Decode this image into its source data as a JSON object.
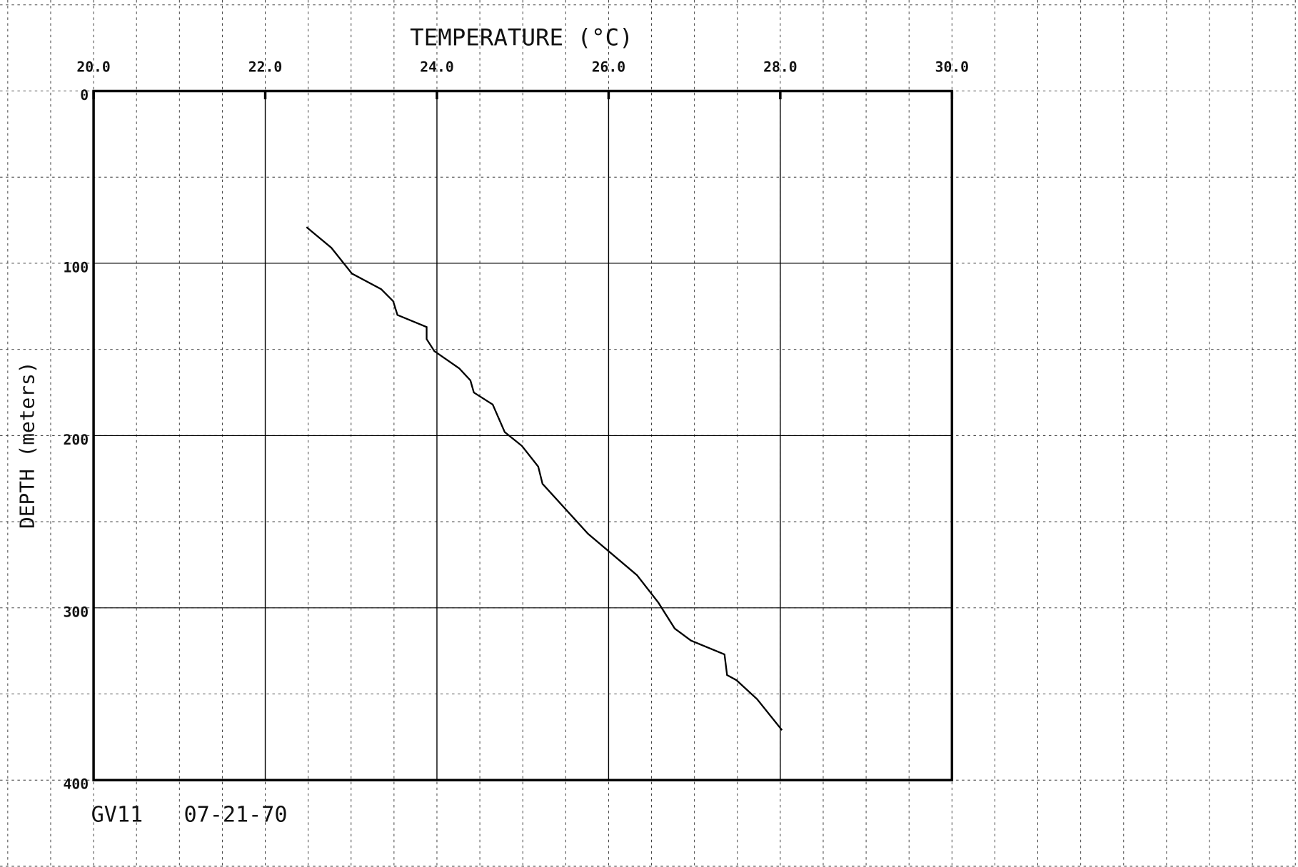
{
  "chart_data": {
    "type": "line",
    "title": "TEMPERATURE (°C)",
    "y_label": "DEPTH (meters)",
    "annotations": [
      "GV11",
      "07-21-70"
    ],
    "x": [
      22.48,
      22.77,
      23.01,
      23.35,
      23.49,
      23.54,
      23.88,
      23.88,
      23.97,
      24.26,
      24.39,
      24.43,
      24.65,
      24.79,
      24.99,
      25.18,
      25.23,
      25.76,
      26.33,
      26.58,
      26.77,
      26.96,
      27.35,
      27.38,
      27.49,
      27.73,
      28.02
    ],
    "values": [
      79,
      91,
      106,
      115,
      122,
      130,
      137,
      144,
      151,
      161,
      168,
      175,
      182,
      198,
      206,
      218,
      228,
      257,
      281,
      297,
      312,
      319,
      327,
      339,
      342,
      353,
      371
    ],
    "color": "#000000",
    "xlim": [
      20,
      30
    ],
    "xticks": [
      {
        "value": 20,
        "label": "20.0"
      },
      {
        "value": 22,
        "label": "22.0"
      },
      {
        "value": 24,
        "label": "24.0"
      },
      {
        "value": 26,
        "label": "26.0"
      },
      {
        "value": 28,
        "label": "28.0"
      },
      {
        "value": 30,
        "label": "30.0"
      }
    ],
    "ylim": [
      0,
      400
    ],
    "yticks": [
      0,
      100,
      200,
      300,
      400
    ],
    "y_inverted": true,
    "grid": true
  }
}
